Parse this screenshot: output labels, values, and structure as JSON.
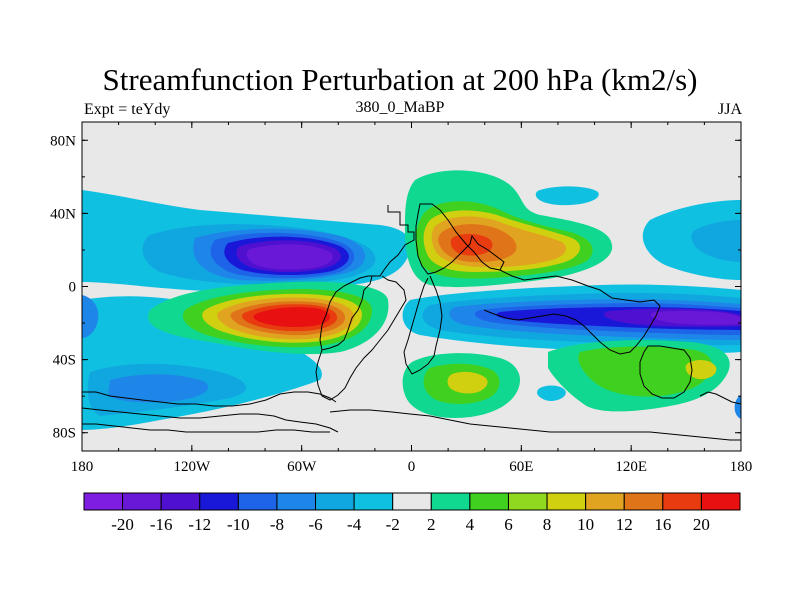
{
  "chart_data": {
    "type": "heatmap",
    "title": "Streamfunction Perturbation at 200 hPa (km2/s)",
    "left_string": "Expt = teYdy",
    "center_string": "380_0_MaBP",
    "right_string": "JJA",
    "x_ticks": [
      {
        "value": -180,
        "label": "180"
      },
      {
        "value": -120,
        "label": "120W"
      },
      {
        "value": -60,
        "label": "60W"
      },
      {
        "value": 0,
        "label": "0"
      },
      {
        "value": 60,
        "label": "60E"
      },
      {
        "value": 120,
        "label": "120E"
      },
      {
        "value": 180,
        "label": "180"
      }
    ],
    "y_ticks": [
      {
        "value": 80,
        "label": "80N"
      },
      {
        "value": 40,
        "label": "40N"
      },
      {
        "value": 0,
        "label": "0"
      },
      {
        "value": -40,
        "label": "40S"
      },
      {
        "value": -80,
        "label": "80S"
      }
    ],
    "xlim": [
      -180,
      180
    ],
    "ylim": [
      -90,
      90
    ],
    "colorbar": {
      "colors": [
        "#7e1ee0",
        "#6a18d8",
        "#5010d0",
        "#1a18d8",
        "#1e64e8",
        "#1e86e8",
        "#10a6e0",
        "#10c0e0",
        "#e8e8e8",
        "#10d890",
        "#40d020",
        "#90d820",
        "#d0d010",
        "#e0a420",
        "#e07418",
        "#e83c10",
        "#e81010"
      ],
      "labels": [
        "-20",
        "-16",
        "-12",
        "-10",
        "-8",
        "-6",
        "-4",
        "-2",
        "2",
        "4",
        "6",
        "8",
        "10",
        "12",
        "16",
        "20"
      ]
    },
    "features": [
      {
        "name": "trough-north-pacific",
        "lon": -50,
        "lat": 15,
        "value": -20
      },
      {
        "name": "high-south-atlantic",
        "lon": -45,
        "lat": -18,
        "value": 20
      },
      {
        "name": "high-africa",
        "lon": 30,
        "lat": 22,
        "value": 16
      },
      {
        "name": "trough-indian-ocean",
        "lon": 130,
        "lat": -18,
        "value": -16
      },
      {
        "name": "high-south-indian",
        "lon": 60,
        "lat": -50,
        "value": 8
      },
      {
        "name": "high-australia",
        "lon": 145,
        "lat": -45,
        "value": 8
      }
    ]
  }
}
